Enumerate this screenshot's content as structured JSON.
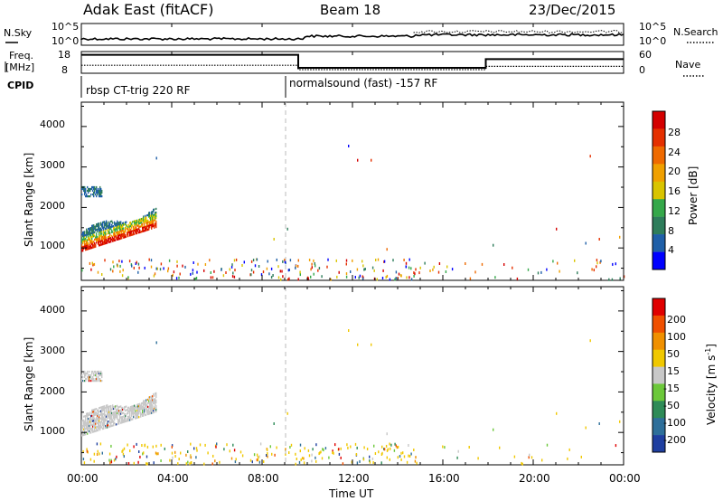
{
  "header": {
    "station": "Adak East (fitACF)",
    "beam": "Beam 18",
    "date": "23/Dec/2015"
  },
  "top_panels": {
    "nsky_label": "N.Sky",
    "nsky_ticks": [
      "10^5",
      "10^0"
    ],
    "nsearch_label": "N.Search",
    "nsearch_ticks": [
      "10^5",
      "10^0"
    ],
    "freq_label_1": "Freq.",
    "freq_label_2": "[MHz]",
    "freq_ticks": [
      "18",
      "8"
    ],
    "nave_label": "Nave",
    "nave_ticks": [
      "60",
      "0"
    ],
    "cpid_label": "CPID",
    "cpid_segments": [
      {
        "start_hour": 0,
        "text": "rbsp CT-trig 220 RF"
      },
      {
        "start_hour": 9.0,
        "text": "normalsound (fast) -157 RF"
      }
    ]
  },
  "xaxis": {
    "label": "Time UT",
    "ticks": [
      "00:00",
      "04:00",
      "08:00",
      "12:00",
      "16:00",
      "20:00",
      "00:00"
    ]
  },
  "power_panel": {
    "ylabel": "Slant Range [km]",
    "yticks": [
      "1000",
      "2000",
      "3000",
      "4000"
    ],
    "colorbar_label": "Power [dB]",
    "colorbar_ticks": [
      "28",
      "24",
      "20",
      "16",
      "12",
      "8",
      "4"
    ],
    "colors": [
      "#0000ff",
      "#1f5fa8",
      "#2e7d5b",
      "#35a84a",
      "#d9c400",
      "#f0a000",
      "#ef6a00",
      "#e53000",
      "#d40000"
    ]
  },
  "velocity_panel": {
    "ylabel": "Slant Range [km]",
    "yticks": [
      "1000",
      "2000",
      "3000",
      "4000"
    ],
    "colorbar_label": "Velocity [m s",
    "colorbar_label_sup": "-1",
    "colorbar_label_end": "]",
    "colorbar_ticks": [
      "200",
      "100",
      "50",
      "15",
      "-15",
      "-50",
      "-100",
      "-200"
    ],
    "colors": [
      "#1f3fa0",
      "#2e6f9a",
      "#2e8b57",
      "#6cc83a",
      "#c8c8c8",
      "#f0c800",
      "#f09000",
      "#f05000",
      "#e00000"
    ]
  },
  "chart_data": {
    "type": "heatmap",
    "title": "Adak East (fitACF) Beam 18 23/Dec/2015",
    "xlabel": "Time UT",
    "ylabel": "Slant Range [km]",
    "xlim": [
      0,
      24
    ],
    "ylim": [
      200,
      4600
    ],
    "series": [
      {
        "name": "Power [dB]",
        "range": [
          0,
          32
        ]
      },
      {
        "name": "Velocity [m s-1]",
        "range": [
          -250,
          250
        ]
      }
    ],
    "ancillary": {
      "freq_MHz_segments": [
        {
          "start": 0,
          "end": 9.6,
          "value": 16.5
        },
        {
          "start": 9.6,
          "end": 17.9,
          "value": 10.5
        },
        {
          "start": 17.9,
          "end": 24,
          "value": 14.5
        }
      ],
      "nave_segments": [
        {
          "start": 0,
          "end": 9.6,
          "value": 22
        },
        {
          "start": 9.6,
          "end": 17.9,
          "value": 10
        },
        {
          "start": 17.9,
          "end": 24,
          "value": 19
        }
      ]
    }
  }
}
